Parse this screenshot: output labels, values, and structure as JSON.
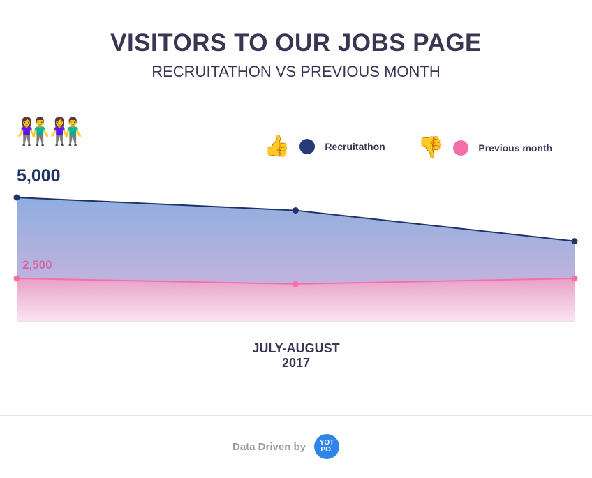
{
  "chart_data": {
    "type": "area",
    "title": "VISITORS TO OUR JOBS PAGE",
    "subtitle": "RECRUITATHON VS PREVIOUS MONTH",
    "xlabel_line1": "JULY-AUGUST",
    "xlabel_line2": "2017",
    "x": [
      1,
      2,
      3
    ],
    "series": [
      {
        "name": "Recruitathon",
        "values": [
          5000,
          4600,
          3650
        ],
        "color": "#1f3366",
        "fill_top": "#8faee0",
        "fill_bottom": "#d7b6dd"
      },
      {
        "name": "Previous month",
        "values": [
          2500,
          2330,
          2500
        ],
        "color": "#f56fa8",
        "fill_top": "#e8a0c8",
        "fill_bottom": "#fbe3ef"
      }
    ],
    "annotations": {
      "max_label": "5,000",
      "prev_label": "2,500"
    },
    "legend_placement": "top-right",
    "grid": false
  },
  "legend": {
    "recruitathon_icon": "thumbs-up-icon",
    "previous_icon": "thumbs-down-icon",
    "thumbs_up": "👍",
    "thumbs_down": "👎"
  },
  "decor": {
    "couples_large": "👫👫",
    "couples_small": "👫"
  },
  "footer": {
    "text": "Data Driven by",
    "logo": "YOT\nPO."
  }
}
